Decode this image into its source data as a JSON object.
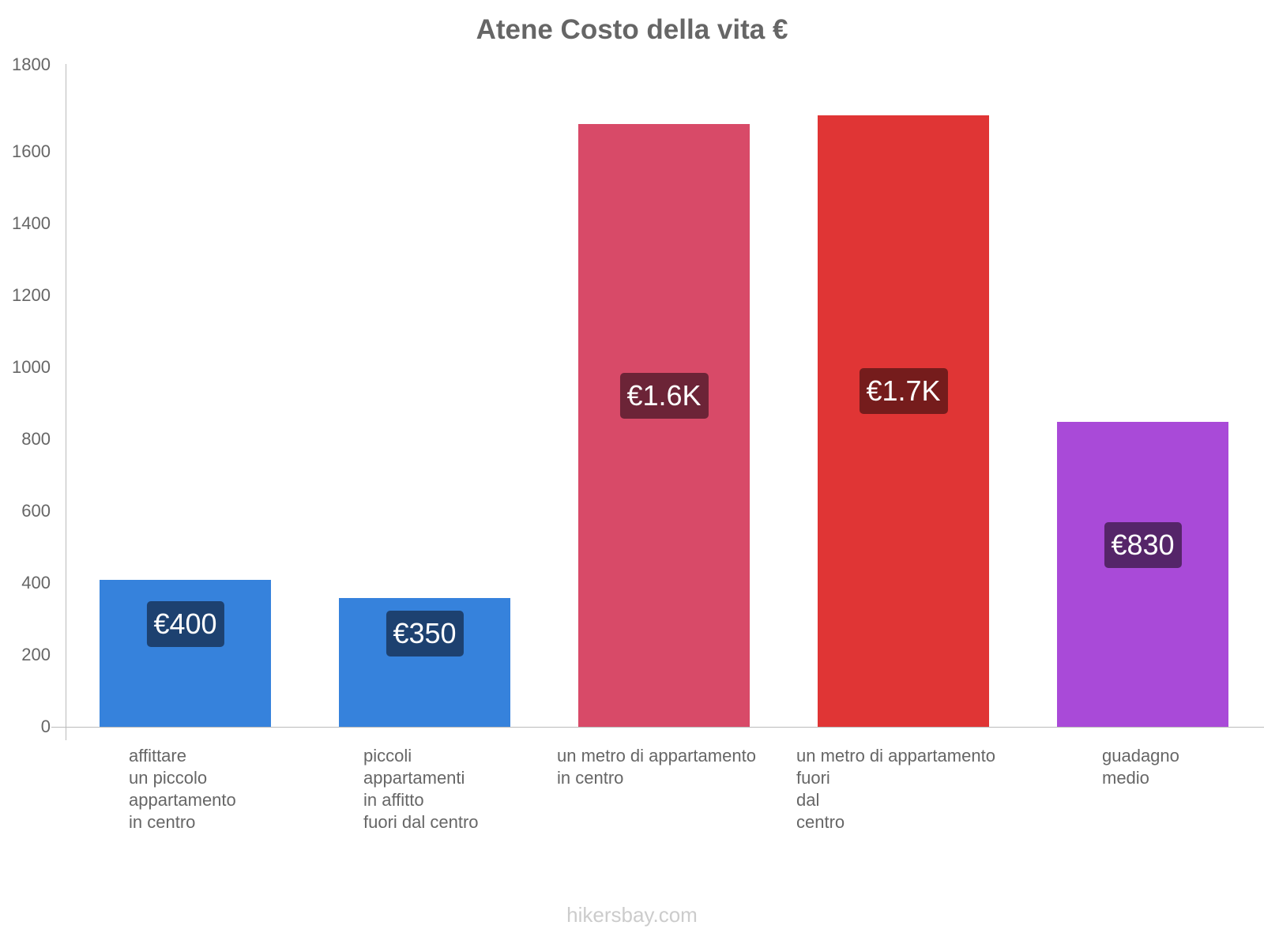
{
  "chart_data": {
    "type": "bar",
    "title": "Atene Costo della vita €",
    "xlabel": "",
    "ylabel": "",
    "ylim": [
      0,
      1800
    ],
    "yticks": [
      "0",
      "200",
      "400",
      "600",
      "800",
      "1000",
      "1200",
      "1400",
      "1600",
      "1800"
    ],
    "grid": false,
    "legend": "none",
    "categories": [
      "affittare un piccolo appartamento in centro",
      "piccoli appartamenti in affitto fuori dal centro",
      "un metro di appartamento in centro",
      "un metro di appartamento fuori dal centro",
      "guadagno medio"
    ],
    "values": [
      400,
      350,
      1640,
      1665,
      830
    ],
    "data_labels": [
      "€400",
      "€350",
      "€1.6K",
      "€1.7K",
      "€830"
    ],
    "colors": [
      "#3682dc",
      "#3682dc",
      "#d84a68",
      "#e03535",
      "#a94ad8"
    ],
    "label_bg_colors": [
      "#1d4170",
      "#1d4170",
      "#6c2437",
      "#751c1c",
      "#552569"
    ]
  },
  "xlabels": [
    "affittare\nun piccolo\nappartamento\nin centro",
    "piccoli\nappartamenti\nin affitto\nfuori dal centro",
    "un metro di appartamento\nin centro",
    "un metro di appartamento\nfuori\ndal\ncentro",
    "guadagno\nmedio"
  ],
  "footer": "hikersbay.com"
}
